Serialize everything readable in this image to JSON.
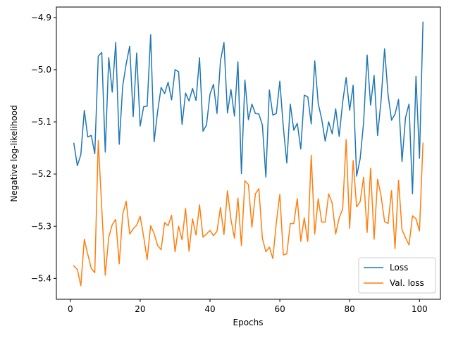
{
  "chart_data": {
    "type": "line",
    "title": "",
    "xlabel": "Epochs",
    "ylabel": "Negative log-likelihood",
    "xlim": [
      -4,
      106
    ],
    "ylim": [
      -5.44,
      -4.88
    ],
    "xticks": [
      0,
      20,
      40,
      60,
      80,
      100
    ],
    "yticks": [
      -5.4,
      -5.3,
      -5.2,
      -5.1,
      -5.0,
      -4.9
    ],
    "ytick_labels": [
      "−5.4",
      "−5.3",
      "−5.2",
      "−5.1",
      "−5.0",
      "−4.9"
    ],
    "grid": false,
    "legend": "lower-right",
    "series": [
      {
        "name": "Loss",
        "color": "#1f77b4",
        "x": [
          1,
          2,
          3,
          4,
          5,
          6,
          7,
          8,
          9,
          10,
          11,
          12,
          13,
          14,
          15,
          16,
          17,
          18,
          19,
          20,
          21,
          22,
          23,
          24,
          25,
          26,
          27,
          28,
          29,
          30,
          31,
          32,
          33,
          34,
          35,
          36,
          37,
          38,
          39,
          40,
          41,
          42,
          43,
          44,
          45,
          46,
          47,
          48,
          49,
          50,
          51,
          52,
          53,
          54,
          55,
          56,
          57,
          58,
          59,
          60,
          61,
          62,
          63,
          64,
          65,
          66,
          67,
          68,
          69,
          70,
          71,
          72,
          73,
          74,
          75,
          76,
          77,
          78,
          79,
          80,
          81,
          82,
          83,
          84,
          85,
          86,
          87,
          88,
          89,
          90,
          91,
          92,
          93,
          94,
          95,
          96,
          97,
          98,
          99,
          100,
          101
        ],
        "values": [
          -5.141,
          -5.184,
          -5.163,
          -5.078,
          -5.129,
          -5.126,
          -5.161,
          -4.974,
          -4.967,
          -5.158,
          -4.977,
          -5.043,
          -4.948,
          -5.143,
          -5.031,
          -4.989,
          -4.955,
          -5.09,
          -4.968,
          -5.108,
          -5.071,
          -5.07,
          -4.933,
          -5.138,
          -5.08,
          -5.034,
          -5.046,
          -5.024,
          -5.058,
          -5.0,
          -5.004,
          -5.105,
          -5.045,
          -5.06,
          -5.036,
          -5.059,
          -4.977,
          -5.118,
          -5.106,
          -5.047,
          -5.028,
          -5.084,
          -4.983,
          -4.948,
          -5.083,
          -5.038,
          -5.089,
          -4.985,
          -5.199,
          -5.02,
          -5.096,
          -5.066,
          -5.084,
          -5.085,
          -5.106,
          -5.206,
          -5.039,
          -5.087,
          -5.084,
          -5.022,
          -5.11,
          -5.179,
          -5.066,
          -5.116,
          -5.103,
          -5.152,
          -5.049,
          -5.052,
          -5.104,
          -4.983,
          -5.065,
          -5.095,
          -5.137,
          -5.1,
          -5.123,
          -5.075,
          -5.128,
          -5.062,
          -5.015,
          -5.078,
          -5.03,
          -5.204,
          -5.171,
          -5.101,
          -4.972,
          -5.068,
          -5.011,
          -5.126,
          -5.059,
          -4.96,
          -5.048,
          -5.097,
          -5.085,
          -5.057,
          -5.176,
          -5.092,
          -5.066,
          -5.238,
          -5.013,
          -5.17,
          -4.909
        ]
      },
      {
        "name": "Val. loss",
        "color": "#ff7f0e",
        "x": [
          1,
          2,
          3,
          4,
          5,
          6,
          7,
          8,
          9,
          10,
          11,
          12,
          13,
          14,
          15,
          16,
          17,
          18,
          19,
          20,
          21,
          22,
          23,
          24,
          25,
          26,
          27,
          28,
          29,
          30,
          31,
          32,
          33,
          34,
          35,
          36,
          37,
          38,
          39,
          40,
          41,
          42,
          43,
          44,
          45,
          46,
          47,
          48,
          49,
          50,
          51,
          52,
          53,
          54,
          55,
          56,
          57,
          58,
          59,
          60,
          61,
          62,
          63,
          64,
          65,
          66,
          67,
          68,
          69,
          70,
          71,
          72,
          73,
          74,
          75,
          76,
          77,
          78,
          79,
          80,
          81,
          82,
          83,
          84,
          85,
          86,
          87,
          88,
          89,
          90,
          91,
          92,
          93,
          94,
          95,
          96,
          97,
          98,
          99,
          100,
          101
        ],
        "values": [
          -5.376,
          -5.383,
          -5.414,
          -5.325,
          -5.354,
          -5.381,
          -5.389,
          -5.136,
          -5.266,
          -5.394,
          -5.321,
          -5.297,
          -5.287,
          -5.372,
          -5.277,
          -5.252,
          -5.315,
          -5.305,
          -5.298,
          -5.281,
          -5.32,
          -5.364,
          -5.299,
          -5.314,
          -5.337,
          -5.345,
          -5.293,
          -5.299,
          -5.279,
          -5.349,
          -5.3,
          -5.326,
          -5.266,
          -5.348,
          -5.286,
          -5.317,
          -5.259,
          -5.321,
          -5.315,
          -5.308,
          -5.318,
          -5.31,
          -5.264,
          -5.316,
          -5.232,
          -5.287,
          -5.323,
          -5.246,
          -5.337,
          -5.213,
          -5.22,
          -5.302,
          -5.238,
          -5.228,
          -5.323,
          -5.349,
          -5.34,
          -5.362,
          -5.293,
          -5.239,
          -5.355,
          -5.353,
          -5.295,
          -5.295,
          -5.247,
          -5.329,
          -5.284,
          -5.329,
          -5.164,
          -5.315,
          -5.247,
          -5.292,
          -5.292,
          -5.238,
          -5.256,
          -5.315,
          -5.284,
          -5.267,
          -5.134,
          -5.304,
          -5.174,
          -5.263,
          -5.253,
          -5.206,
          -5.312,
          -5.189,
          -5.325,
          -5.21,
          -5.242,
          -5.291,
          -5.295,
          -5.232,
          -5.343,
          -5.212,
          -5.307,
          -5.322,
          -5.336,
          -5.28,
          -5.286,
          -5.309,
          -5.141
        ]
      }
    ]
  }
}
